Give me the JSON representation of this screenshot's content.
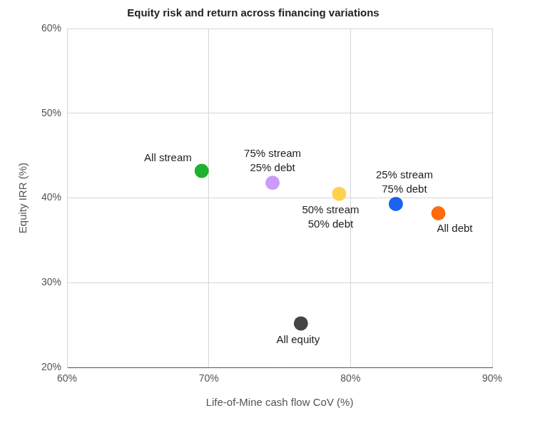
{
  "chart_data": {
    "type": "scatter",
    "title": "Equity risk and return across financing variations",
    "x_label": "Life-of-Mine cash flow CoV (%)",
    "y_label": "Equity IRR (%)",
    "xlim": [
      60,
      90
    ],
    "xticks": [
      {
        "value": 60,
        "label": "60%"
      },
      {
        "value": 70,
        "label": "70%"
      },
      {
        "value": 80,
        "label": "80%"
      },
      {
        "value": 90,
        "label": "90%"
      }
    ],
    "ylim": [
      20,
      60
    ],
    "yticks": [
      {
        "value": 20,
        "label": "20%"
      },
      {
        "value": 30,
        "label": "30%"
      },
      {
        "value": 40,
        "label": "40%"
      },
      {
        "value": 50,
        "label": "50%"
      },
      {
        "value": 60,
        "label": "60%"
      }
    ],
    "grid": true,
    "series": [
      {
        "name": [
          "All stream"
        ],
        "color": "#1fb02e",
        "x": [
          69.5
        ],
        "values": [
          43.2
        ]
      },
      {
        "name": [
          "75% stream",
          "25% debt"
        ],
        "color": "#cc99ff",
        "x": [
          74.5
        ],
        "values": [
          41.8
        ]
      },
      {
        "name": [
          "50% stream",
          "50% debt"
        ],
        "color": "#ffd14f",
        "x": [
          79.2
        ],
        "values": [
          40.5
        ]
      },
      {
        "name": [
          "25% stream",
          "75% debt"
        ],
        "color": "#1a62f0",
        "x": [
          83.2
        ],
        "values": [
          39.3
        ]
      },
      {
        "name": [
          "All debt"
        ],
        "color": "#ff6a0d",
        "x": [
          86.2
        ],
        "values": [
          38.2
        ]
      },
      {
        "name": [
          "All equity"
        ],
        "color": "#454545",
        "x": [
          76.5
        ],
        "values": [
          25.2
        ]
      }
    ]
  }
}
